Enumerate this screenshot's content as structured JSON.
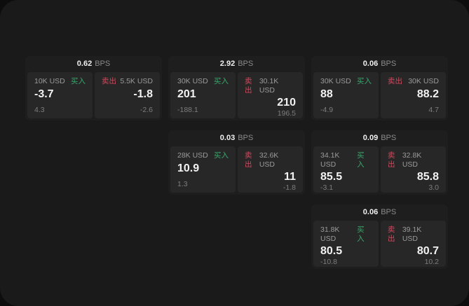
{
  "labels": {
    "bps": "BPS",
    "buy": "买入",
    "sell": "卖出"
  },
  "colors": {
    "buy": "#3aa76d",
    "sell": "#cf4a5e",
    "panel_bg": "#1a1a1a",
    "card_bg": "#1e1e1e",
    "side_bg": "#272727",
    "text_primary": "#f2f2f2",
    "text_secondary": "#9a9a9a",
    "text_muted": "#7d7d7d"
  },
  "cards": [
    {
      "row": 1,
      "col": 1,
      "bps": "0.62",
      "buy": {
        "amount": "10K USD",
        "price": "-3.7",
        "delta": "4.3"
      },
      "sell": {
        "amount": "5.5K USD",
        "price": "-1.8",
        "delta": "-2.6"
      }
    },
    {
      "row": 1,
      "col": 2,
      "bps": "2.92",
      "buy": {
        "amount": "30K USD",
        "price": "201",
        "delta": "-188.1"
      },
      "sell": {
        "amount": "30.1K USD",
        "price": "210",
        "delta": "196.5"
      }
    },
    {
      "row": 1,
      "col": 3,
      "bps": "0.06",
      "buy": {
        "amount": "30K USD",
        "price": "88",
        "delta": "-4.9"
      },
      "sell": {
        "amount": "30K USD",
        "price": "88.2",
        "delta": "4.7"
      }
    },
    {
      "row": 2,
      "col": 2,
      "bps": "0.03",
      "buy": {
        "amount": "28K USD",
        "price": "10.9",
        "delta": "1.3"
      },
      "sell": {
        "amount": "32.6K USD",
        "price": "11",
        "delta": "-1.8"
      }
    },
    {
      "row": 2,
      "col": 3,
      "bps": "0.09",
      "buy": {
        "amount": "34.1K USD",
        "price": "85.5",
        "delta": "-3.1"
      },
      "sell": {
        "amount": "32.8K USD",
        "price": "85.8",
        "delta": "3.0"
      }
    },
    {
      "row": 3,
      "col": 3,
      "bps": "0.06",
      "buy": {
        "amount": "31.8K USD",
        "price": "80.5",
        "delta": "-10.8"
      },
      "sell": {
        "amount": "39.1K USD",
        "price": "80.7",
        "delta": "10.2"
      }
    }
  ]
}
